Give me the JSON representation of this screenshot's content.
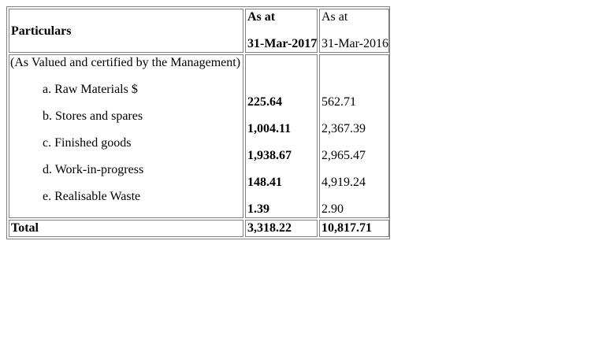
{
  "table": {
    "header": {
      "particulars": "Particulars",
      "col1_line1": "As at",
      "col1_line2": "31-Mar-2017",
      "col2_line1": "As at",
      "col2_line2": "31-Mar-2016"
    },
    "note": "(As Valued and certified by the Management)",
    "items": [
      {
        "label": "a. Raw Materials $",
        "y2017": "225.64",
        "y2016": "562.71"
      },
      {
        "label": "b. Stores and spares",
        "y2017": "1,004.11",
        "y2016": "2,367.39"
      },
      {
        "label": "c. Finished goods",
        "y2017": "1,938.67",
        "y2016": "2,965.47"
      },
      {
        "label": "d. Work-in-progress",
        "y2017": "148.41",
        "y2016": "4,919.24"
      },
      {
        "label": "e. Realisable Waste",
        "y2017": "1.39",
        "y2016": "2.90"
      }
    ],
    "total": {
      "label": "Total",
      "y2017": "3,318.22",
      "y2016": "10,817.71"
    }
  }
}
